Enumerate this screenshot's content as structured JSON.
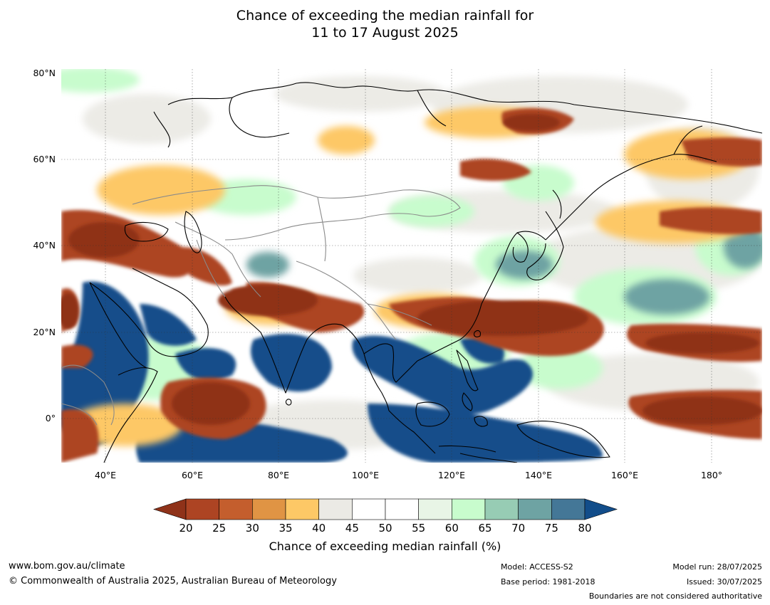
{
  "title_line1": "Chance of exceeding the median rainfall for",
  "title_line2": "11 to 17 August 2025",
  "lat_labels": [
    "80°N",
    "60°N",
    "40°N",
    "20°N",
    "0°"
  ],
  "lon_labels": [
    "40°E",
    "60°E",
    "80°E",
    "100°E",
    "120°E",
    "140°E",
    "160°E",
    "180°"
  ],
  "colorbar": {
    "ticks": [
      "20",
      "25",
      "30",
      "35",
      "40",
      "45",
      "50",
      "55",
      "60",
      "65",
      "70",
      "75",
      "80"
    ],
    "colors": [
      "#8f3219",
      "#ad4423",
      "#c45e2d",
      "#e09444",
      "#fdc866",
      "#ebeae5",
      "#ffffff",
      "#ffffff",
      "#e8f5e6",
      "#c8fccd",
      "#97ccb4",
      "#6ea3a3",
      "#447797",
      "#124d8a"
    ],
    "label": "Chance of exceeding median rainfall (%)"
  },
  "footer": {
    "url": "www.bom.gov.au/climate",
    "copyright": "© Commonwealth of Australia 2025, Australian Bureau of Meteorology",
    "model": "Model: ACCESS-S2",
    "base_period": "Base period: 1981-2018",
    "model_run": "Model run: 28/07/2025",
    "issued": "Issued: 30/07/2025",
    "disclaimer": "Boundaries are not considered authoritative"
  }
}
